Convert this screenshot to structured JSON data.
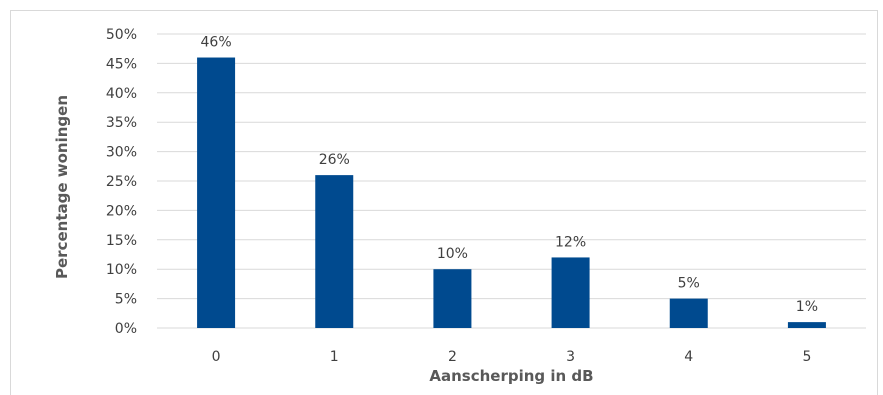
{
  "chart_data": {
    "type": "bar",
    "title": "",
    "xlabel": "Aanscherping in dB",
    "ylabel": "Percentage woningen",
    "categories": [
      "0",
      "1",
      "2",
      "3",
      "4",
      "5"
    ],
    "values": [
      46,
      26,
      10,
      12,
      5,
      1
    ],
    "data_labels": [
      "46%",
      "26%",
      "10%",
      "12%",
      "5%",
      "1%"
    ],
    "ylim": [
      0,
      50
    ],
    "yticks": [
      0,
      5,
      10,
      15,
      20,
      25,
      30,
      35,
      40,
      45,
      50
    ],
    "ytick_labels": [
      "0%",
      "5%",
      "10%",
      "15%",
      "20%",
      "25%",
      "30%",
      "35%",
      "40%",
      "45%",
      "50%"
    ],
    "grid": true,
    "legend": "none",
    "bar_color": "#004a8f",
    "grid_color": "#d9d9d9"
  }
}
